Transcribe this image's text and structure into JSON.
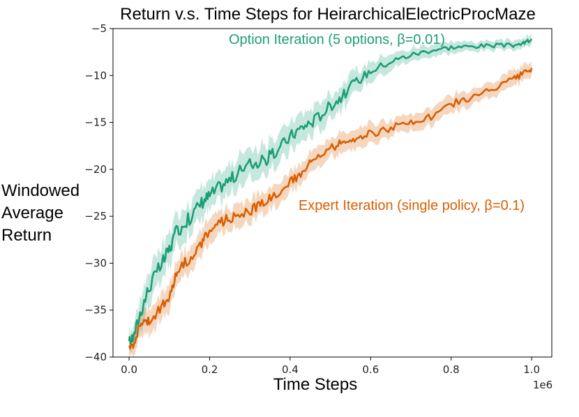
{
  "chart_data": {
    "type": "line",
    "title": "Return v.s. Time Steps for HeirarchicalElectricProcMaze",
    "xlabel": "Time Steps",
    "ylabel": [
      "Windowed",
      "Average",
      "Return"
    ],
    "x_offset_label": "1e6",
    "xlim": [
      -0.04,
      1.05
    ],
    "ylim": [
      -40,
      -5
    ],
    "x_ticks": [
      0.0,
      0.2,
      0.4,
      0.6,
      0.8,
      1.0
    ],
    "x_tick_labels": [
      "0.0",
      "0.2",
      "0.4",
      "0.6",
      "0.8",
      "1.0"
    ],
    "y_ticks": [
      -40,
      -35,
      -30,
      -25,
      -20,
      -15,
      -10,
      -5
    ],
    "y_tick_labels": [
      "−40",
      "−35",
      "−30",
      "−25",
      "−20",
      "−15",
      "−10",
      "−5"
    ],
    "grid": false,
    "legend": "inline labels",
    "series": [
      {
        "name": "Option Iteration (5 options, β=0.01)",
        "color": "#1b9e77",
        "x": [
          0.0,
          0.01,
          0.03,
          0.05,
          0.08,
          0.1,
          0.12,
          0.15,
          0.18,
          0.2,
          0.23,
          0.26,
          0.3,
          0.33,
          0.36,
          0.4,
          0.43,
          0.46,
          0.5,
          0.53,
          0.56,
          0.6,
          0.65,
          0.7,
          0.75,
          0.8,
          0.85,
          0.9,
          0.95,
          0.98,
          1.0
        ],
        "values": [
          -38.3,
          -38.0,
          -35.0,
          -32.5,
          -30.2,
          -28.5,
          -26.5,
          -25.2,
          -23.5,
          -22.8,
          -21.7,
          -20.8,
          -19.4,
          -19.2,
          -18.4,
          -16.5,
          -15.5,
          -14.8,
          -13.2,
          -12.2,
          -10.8,
          -9.5,
          -8.5,
          -7.8,
          -7.3,
          -7.0,
          -6.9,
          -6.8,
          -6.8,
          -6.6,
          -6.1
        ],
        "band": [
          1.1,
          1.1,
          1.8,
          1.8,
          1.8,
          1.7,
          1.7,
          1.7,
          1.6,
          1.6,
          1.6,
          1.6,
          1.6,
          1.6,
          1.6,
          1.5,
          1.5,
          1.5,
          1.4,
          1.3,
          1.2,
          1.0,
          0.8,
          0.7,
          0.6,
          0.6,
          0.5,
          0.5,
          0.5,
          0.5,
          0.6
        ]
      },
      {
        "name": "Expert Iteration (single policy, β=0.1)",
        "color": "#d95f02",
        "x": [
          0.0,
          0.01,
          0.03,
          0.05,
          0.08,
          0.1,
          0.12,
          0.15,
          0.18,
          0.2,
          0.23,
          0.26,
          0.3,
          0.33,
          0.36,
          0.4,
          0.43,
          0.46,
          0.5,
          0.53,
          0.56,
          0.6,
          0.65,
          0.7,
          0.75,
          0.8,
          0.85,
          0.9,
          0.95,
          0.98,
          1.0
        ],
        "values": [
          -38.8,
          -38.6,
          -36.2,
          -36.0,
          -34.8,
          -33.5,
          -30.8,
          -29.5,
          -28.0,
          -26.5,
          -25.6,
          -25.0,
          -24.4,
          -23.6,
          -22.7,
          -21.5,
          -20.2,
          -19.0,
          -17.8,
          -17.1,
          -16.6,
          -16.2,
          -15.6,
          -15.0,
          -14.5,
          -13.0,
          -12.4,
          -11.5,
          -10.5,
          -9.8,
          -9.2
        ],
        "band": [
          1.0,
          1.0,
          1.4,
          1.4,
          1.4,
          1.4,
          1.3,
          1.3,
          1.3,
          1.3,
          1.2,
          1.2,
          1.2,
          1.2,
          1.2,
          1.2,
          1.1,
          1.1,
          1.0,
          1.0,
          1.0,
          1.0,
          0.9,
          0.9,
          0.9,
          0.9,
          0.8,
          0.8,
          0.8,
          0.8,
          0.8
        ]
      }
    ]
  }
}
